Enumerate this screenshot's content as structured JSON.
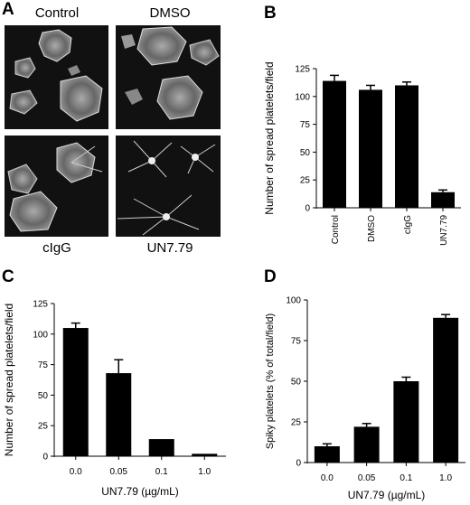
{
  "figure": {
    "panel_labels": [
      "A",
      "B",
      "C",
      "D"
    ],
    "micrographs": [
      {
        "label": "Control",
        "description": "spread platelets"
      },
      {
        "label": "DMSO",
        "description": "spread platelets"
      },
      {
        "label": "cIgG",
        "description": "spread platelets"
      },
      {
        "label": "UN7.79",
        "description": "spiky platelets"
      }
    ]
  },
  "chart_data": [
    {
      "panel": "B",
      "type": "bar",
      "categories": [
        "Control",
        "DMSO",
        "cIgG",
        "UN7.79"
      ],
      "values": [
        114,
        106,
        110,
        14
      ],
      "errors": [
        5,
        4,
        3,
        2
      ],
      "ylabel": "Number of spread platelets/field",
      "xlabel": "",
      "ylim": [
        0,
        125
      ],
      "yticks": [
        "0",
        "25",
        "50",
        "75",
        "100",
        "125"
      ],
      "grid": false,
      "bar_color": "#000000"
    },
    {
      "panel": "C",
      "type": "bar",
      "categories": [
        "0.0",
        "0.05",
        "0.1",
        "1.0"
      ],
      "values": [
        105,
        68,
        14,
        2
      ],
      "errors": [
        4,
        11,
        0,
        0
      ],
      "ylabel": "Number of spread platelets/field",
      "xlabel": "UN7.79 (µg/mL)",
      "ylim": [
        0,
        125
      ],
      "yticks": [
        "0",
        "25",
        "50",
        "75",
        "100",
        "125"
      ],
      "grid": false,
      "bar_color": "#000000"
    },
    {
      "panel": "D",
      "type": "bar",
      "categories": [
        "0.0",
        "0.05",
        "0.1",
        "1.0"
      ],
      "values": [
        10,
        22,
        50,
        89
      ],
      "errors": [
        1.5,
        2,
        2.5,
        2
      ],
      "ylabel": "Spiky platelets (% of total/field)",
      "xlabel": "UN7.79 (µg/mL)",
      "ylim": [
        0,
        100
      ],
      "yticks": [
        "0",
        "25",
        "50",
        "75",
        "100"
      ],
      "grid": false,
      "bar_color": "#000000"
    }
  ]
}
